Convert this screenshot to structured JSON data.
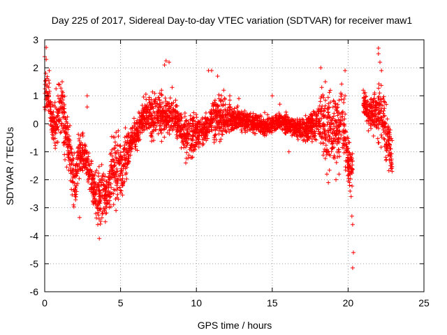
{
  "chart_data": {
    "type": "scatter",
    "title": "Day 225 of 2017, Sidereal Day-to-day VTEC variation (SDTVAR) for receiver maw1",
    "xlabel": "GPS time / hours",
    "ylabel": "SDTVAR / TECUs",
    "xlim": [
      0,
      25
    ],
    "ylim": [
      -6,
      3
    ],
    "xticks": [
      0,
      5,
      10,
      15,
      20,
      25
    ],
    "yticks": [
      -6,
      -5,
      -4,
      -3,
      -2,
      -1,
      0,
      1,
      2,
      3
    ],
    "xtick_labels": [
      "0",
      "5",
      "10",
      "15",
      "20",
      "25"
    ],
    "ytick_labels": [
      "-6",
      "-5",
      "-4",
      "-3",
      "-2",
      "-1",
      "0",
      "1",
      "2",
      "3"
    ],
    "grid": true,
    "marker": "+",
    "color": "#ff0000",
    "series": [
      {
        "name": "SDTVAR",
        "envelope": [
          {
            "x": 0.0,
            "lo": 0.4,
            "hi": 2.3
          },
          {
            "x": 0.1,
            "lo": 0.5,
            "hi": 2.4
          },
          {
            "x": 0.3,
            "lo": 0.3,
            "hi": 1.5
          },
          {
            "x": 0.5,
            "lo": -0.6,
            "hi": 0.6
          },
          {
            "x": 0.8,
            "lo": -1.0,
            "hi": 0.9
          },
          {
            "x": 1.0,
            "lo": -0.5,
            "hi": 1.6
          },
          {
            "x": 1.3,
            "lo": -1.0,
            "hi": 1.0
          },
          {
            "x": 1.5,
            "lo": -1.3,
            "hi": 0.2
          },
          {
            "x": 1.8,
            "lo": -2.5,
            "hi": -0.8
          },
          {
            "x": 2.0,
            "lo": -2.9,
            "hi": -1.5
          },
          {
            "x": 2.2,
            "lo": -2.2,
            "hi": -0.5
          },
          {
            "x": 2.5,
            "lo": -1.6,
            "hi": -0.4
          },
          {
            "x": 2.8,
            "lo": -1.8,
            "hi": -1.0
          },
          {
            "x": 3.2,
            "lo": -3.0,
            "hi": -1.5
          },
          {
            "x": 3.5,
            "lo": -3.5,
            "hi": -1.8
          },
          {
            "x": 3.8,
            "lo": -3.4,
            "hi": -1.7
          },
          {
            "x": 4.0,
            "lo": -3.1,
            "hi": -2.0
          },
          {
            "x": 4.3,
            "lo": -3.0,
            "hi": -1.2
          },
          {
            "x": 4.5,
            "lo": -2.9,
            "hi": -0.5
          },
          {
            "x": 4.8,
            "lo": -2.6,
            "hi": -0.4
          },
          {
            "x": 5.0,
            "lo": -2.5,
            "hi": -0.4
          },
          {
            "x": 5.3,
            "lo": -2.0,
            "hi": -0.5
          },
          {
            "x": 5.6,
            "lo": -1.3,
            "hi": 0.0
          },
          {
            "x": 6.0,
            "lo": -0.9,
            "hi": 0.1
          },
          {
            "x": 6.3,
            "lo": -0.6,
            "hi": 0.5
          },
          {
            "x": 6.6,
            "lo": -0.3,
            "hi": 0.8
          },
          {
            "x": 7.0,
            "lo": -0.5,
            "hi": 1.0
          },
          {
            "x": 7.5,
            "lo": -0.4,
            "hi": 0.9
          },
          {
            "x": 8.0,
            "lo": -0.3,
            "hi": 0.9
          },
          {
            "x": 8.5,
            "lo": -0.2,
            "hi": 0.8
          },
          {
            "x": 9.0,
            "lo": -0.8,
            "hi": 0.4
          },
          {
            "x": 9.5,
            "lo": -1.2,
            "hi": 0.1
          },
          {
            "x": 10.0,
            "lo": -1.0,
            "hi": 0.4
          },
          {
            "x": 10.5,
            "lo": -0.7,
            "hi": 0.2
          },
          {
            "x": 11.0,
            "lo": -0.3,
            "hi": 0.8
          },
          {
            "x": 11.5,
            "lo": -0.5,
            "hi": 0.9
          },
          {
            "x": 12.0,
            "lo": -0.3,
            "hi": 0.7
          },
          {
            "x": 12.5,
            "lo": -0.2,
            "hi": 0.6
          },
          {
            "x": 13.0,
            "lo": -0.3,
            "hi": 0.5
          },
          {
            "x": 13.5,
            "lo": -0.2,
            "hi": 0.4
          },
          {
            "x": 14.0,
            "lo": -0.3,
            "hi": 0.3
          },
          {
            "x": 14.5,
            "lo": -0.4,
            "hi": 0.2
          },
          {
            "x": 15.0,
            "lo": -0.3,
            "hi": 0.2
          },
          {
            "x": 15.5,
            "lo": -0.2,
            "hi": 0.4
          },
          {
            "x": 16.0,
            "lo": -0.3,
            "hi": 0.3
          },
          {
            "x": 16.5,
            "lo": -0.4,
            "hi": 0.1
          },
          {
            "x": 17.0,
            "lo": -0.6,
            "hi": 0.2
          },
          {
            "x": 17.5,
            "lo": -0.5,
            "hi": 0.3
          },
          {
            "x": 18.0,
            "lo": -0.5,
            "hi": 0.7
          },
          {
            "x": 18.3,
            "lo": -1.0,
            "hi": 1.2
          },
          {
            "x": 18.6,
            "lo": -1.5,
            "hi": 0.9
          },
          {
            "x": 19.0,
            "lo": -1.2,
            "hi": 0.8
          },
          {
            "x": 19.3,
            "lo": -1.3,
            "hi": 1.0
          },
          {
            "x": 19.6,
            "lo": -1.0,
            "hi": 1.4
          },
          {
            "x": 20.0,
            "lo": -2.0,
            "hi": -0.6
          },
          {
            "x": 20.3,
            "lo": -2.5,
            "hi": -0.9
          },
          {
            "x": 21.0,
            "lo": 0.3,
            "hi": 1.0
          },
          {
            "x": 21.5,
            "lo": -0.2,
            "hi": 1.0
          },
          {
            "x": 22.0,
            "lo": -0.5,
            "hi": 1.5
          },
          {
            "x": 22.3,
            "lo": -0.8,
            "hi": 0.9
          },
          {
            "x": 22.6,
            "lo": -1.5,
            "hi": 0.3
          },
          {
            "x": 22.9,
            "lo": -1.7,
            "hi": -0.5
          }
        ],
        "points": [
          {
            "x": 0.0,
            "y": 2.4
          },
          {
            "x": 0.1,
            "y": 2.3
          },
          {
            "x": 0.3,
            "y": 1.9
          },
          {
            "x": 1.15,
            "y": 1.5
          },
          {
            "x": 1.3,
            "y": -1.1
          },
          {
            "x": 1.9,
            "y": -2.9
          },
          {
            "x": 2.3,
            "y": -3.35
          },
          {
            "x": 2.8,
            "y": 1.0
          },
          {
            "x": 2.8,
            "y": 0.6
          },
          {
            "x": 3.5,
            "y": -3.6
          },
          {
            "x": 3.6,
            "y": -4.1
          },
          {
            "x": 4.0,
            "y": -3.5
          },
          {
            "x": 4.7,
            "y": -3.1
          },
          {
            "x": 7.7,
            "y": 1.2
          },
          {
            "x": 7.9,
            "y": 2.1
          },
          {
            "x": 8.0,
            "y": 2.25
          },
          {
            "x": 8.2,
            "y": 2.2
          },
          {
            "x": 8.4,
            "y": 1.3
          },
          {
            "x": 9.3,
            "y": -1.4
          },
          {
            "x": 10.8,
            "y": 1.9
          },
          {
            "x": 11.0,
            "y": 1.9
          },
          {
            "x": 11.4,
            "y": 1.7
          },
          {
            "x": 11.8,
            "y": 1.2
          },
          {
            "x": 12.2,
            "y": 1.0
          },
          {
            "x": 12.8,
            "y": 0.9
          },
          {
            "x": 14.5,
            "y": 0.4
          },
          {
            "x": 15.0,
            "y": 1.0
          },
          {
            "x": 15.5,
            "y": 0.7
          },
          {
            "x": 16.1,
            "y": -1.0
          },
          {
            "x": 18.2,
            "y": 2.0
          },
          {
            "x": 18.5,
            "y": 1.5
          },
          {
            "x": 18.6,
            "y": -1.8
          },
          {
            "x": 18.7,
            "y": -2.1
          },
          {
            "x": 19.2,
            "y": -2.0
          },
          {
            "x": 19.4,
            "y": -1.8
          },
          {
            "x": 19.8,
            "y": 1.9
          },
          {
            "x": 19.8,
            "y": 1.0
          },
          {
            "x": 20.1,
            "y": -2.2
          },
          {
            "x": 20.2,
            "y": -2.6
          },
          {
            "x": 20.25,
            "y": -3.3
          },
          {
            "x": 20.3,
            "y": -3.6
          },
          {
            "x": 20.35,
            "y": -4.6
          },
          {
            "x": 20.3,
            "y": -5.15
          },
          {
            "x": 21.0,
            "y": 1.2
          },
          {
            "x": 21.6,
            "y": 0.3
          },
          {
            "x": 22.0,
            "y": 2.7
          },
          {
            "x": 22.0,
            "y": 2.5
          },
          {
            "x": 22.1,
            "y": 2.2
          },
          {
            "x": 22.2,
            "y": 1.9
          },
          {
            "x": 22.5,
            "y": -1.3
          },
          {
            "x": 22.8,
            "y": -1.5
          },
          {
            "x": 22.9,
            "y": -1.7
          },
          {
            "x": 22.9,
            "y": -0.6
          }
        ]
      }
    ]
  }
}
